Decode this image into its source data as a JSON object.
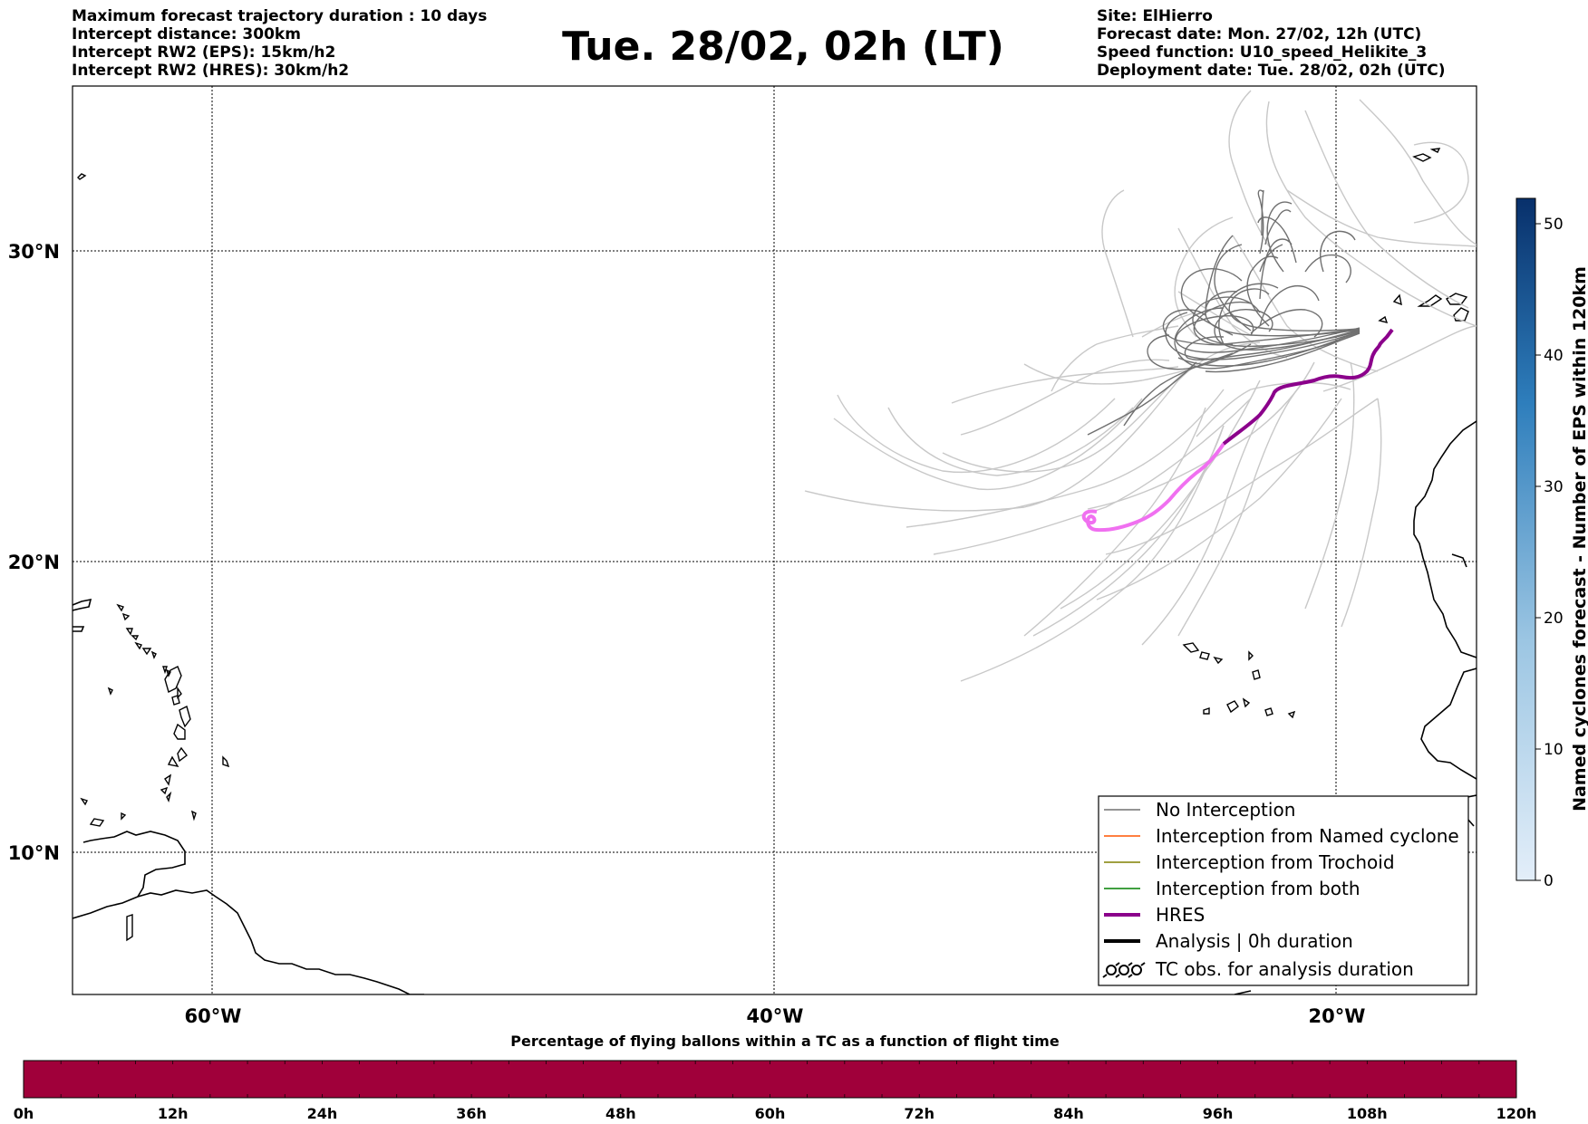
{
  "header": {
    "left_lines": [
      "Maximum forecast trajectory duration : 10 days",
      "Intercept distance: 300km",
      "Intercept RW2 (EPS):  15km/h2",
      "Intercept RW2 (HRES): 30km/h2"
    ],
    "title": "Tue. 28/02, 02h (LT)",
    "right_lines": [
      "Site: ElHierro",
      "Forecast date: Mon. 27/02, 12h (UTC)",
      "Speed function: U10_speed_Helikite_3",
      "Deployment date: Tue. 28/02, 02h (UTC)"
    ]
  },
  "map": {
    "lon_labels": [
      "60°W",
      "40°W",
      "20°W"
    ],
    "lat_labels": [
      "30°N",
      "20°N",
      "10°N"
    ],
    "colors": {
      "no_interception": "#707070",
      "ensemble_other": "#c8c8c8",
      "hres": "#8b008b",
      "hres_early": "#f070f0"
    }
  },
  "legend": {
    "items": [
      {
        "label": "No Interception",
        "color": "#707070"
      },
      {
        "label": "Interception from Named cyclone",
        "color": "#ff5500"
      },
      {
        "label": "Interception from Trochoid",
        "color": "#808000"
      },
      {
        "label": "Interception from both",
        "color": "#008000"
      },
      {
        "label": "HRES",
        "color": "#8b008b"
      },
      {
        "label": "Analysis | 0h duration",
        "color": "#000000"
      },
      {
        "label": "TC obs. for analysis duration",
        "icon": "cyclone-symbols-icon"
      }
    ]
  },
  "colorbar": {
    "label": "Named cyclones forecast - Number of EPS within 120km",
    "ticks": [
      "0",
      "10",
      "20",
      "30",
      "40",
      "50"
    ],
    "colors": {
      "low": "#e3eef9",
      "high": "#08306b"
    }
  },
  "timebar": {
    "title": "Percentage of flying ballons within a TC as a function of flight time",
    "ticks": [
      "0h",
      "12h",
      "24h",
      "36h",
      "48h",
      "60h",
      "72h",
      "84h",
      "96h",
      "108h",
      "120h"
    ],
    "color": "#a0003a"
  }
}
